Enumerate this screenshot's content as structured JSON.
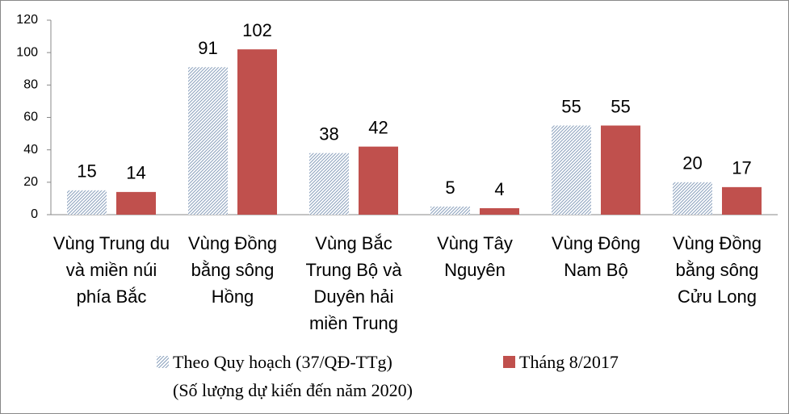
{
  "chart_data": {
    "type": "bar",
    "categories": [
      "Vùng Trung du và miền núi phía Bắc",
      "Vùng Đồng bằng sông Hồng",
      "Vùng Bắc Trung Bộ và Duyên hải miền Trung",
      "Vùng Tây Nguyên",
      "Vùng Đông Nam Bộ",
      "Vùng Đồng bằng sông Cửu Long"
    ],
    "series": [
      {
        "name": "Theo Quy hoạch (37/QĐ-TTg)\n(Số lượng dự kiến đến năm 2020)",
        "color": "#8ea4bf",
        "pattern": "hatch",
        "values": [
          15,
          91,
          38,
          5,
          55,
          20
        ]
      },
      {
        "name": "Tháng 8/2017",
        "color": "#c0504d",
        "values": [
          14,
          102,
          42,
          4,
          55,
          17
        ]
      }
    ],
    "ylim": [
      0,
      120
    ],
    "yticks": [
      0,
      20,
      40,
      60,
      80,
      100,
      120
    ],
    "grid": false
  }
}
